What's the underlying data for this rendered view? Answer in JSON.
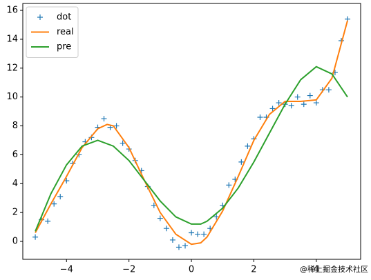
{
  "chart_data": {
    "type": "line",
    "xlim": [
      -5.4,
      5.42
    ],
    "ylim": [
      -1.24,
      16.48
    ],
    "xticks": [
      {
        "value": -4,
        "label": "−4"
      },
      {
        "value": -2,
        "label": "−2"
      },
      0,
      2,
      4
    ],
    "yticks": [
      0,
      2,
      4,
      6,
      8,
      10,
      12,
      14,
      16
    ],
    "grid": false,
    "legend": "upper left",
    "watermark": "@稀土掘金技术社区",
    "series": [
      {
        "name": "dot",
        "color": "#1f77b4",
        "mode": "markers",
        "x": [
          -5,
          -4.8,
          -4.6,
          -4.4,
          -4.2,
          -4,
          -3.8,
          -3.6,
          -3.4,
          -3.2,
          -3,
          -2.8,
          -2.6,
          -2.4,
          -2.2,
          -2,
          -1.8,
          -1.6,
          -1.4,
          -1.2,
          -1,
          -0.8,
          -0.6,
          -0.4,
          -0.2,
          0,
          0.2,
          0.4,
          0.6,
          0.8,
          1,
          1.2,
          1.4,
          1.6,
          1.8,
          2,
          2.2,
          2.4,
          2.6,
          2.8,
          3,
          3.2,
          3.4,
          3.6,
          3.8,
          4,
          4.2,
          4.4,
          4.6,
          4.8,
          5
        ],
        "values": [
          0.3,
          1.5,
          1.4,
          2.6,
          3.1,
          4.2,
          5.4,
          6.0,
          6.9,
          7.2,
          7.9,
          8.5,
          7.9,
          8.0,
          6.8,
          6.4,
          5.6,
          4.9,
          3.8,
          2.5,
          1.6,
          0.9,
          0.1,
          -0.4,
          -0.3,
          0.6,
          0.5,
          0.5,
          0.9,
          1.7,
          2.5,
          3.9,
          4.3,
          5.5,
          6.6,
          7.1,
          8.6,
          8.6,
          9.2,
          9.6,
          9.5,
          9.4,
          10.0,
          9.5,
          10.1,
          9.6,
          10.5,
          10.5,
          11.7,
          13.9,
          15.4
        ]
      },
      {
        "name": "real",
        "color": "#ff7f0e",
        "mode": "lines",
        "x": [
          -5,
          -4.5,
          -4,
          -3.5,
          -3,
          -2.7,
          -2.5,
          -2,
          -1.5,
          -1,
          -0.5,
          0,
          0.3,
          0.5,
          1,
          1.5,
          2,
          2.5,
          3,
          3.5,
          4,
          4.5,
          5
        ],
        "values": [
          0.6,
          2.6,
          4.5,
          6.5,
          7.8,
          8.1,
          8.0,
          6.5,
          4.2,
          2.0,
          0.5,
          -0.2,
          -0.1,
          0.3,
          2.1,
          4.5,
          7.0,
          8.8,
          9.7,
          9.7,
          9.8,
          11.3,
          15.3
        ]
      },
      {
        "name": "pre",
        "color": "#2ca02c",
        "mode": "lines",
        "x": [
          -5,
          -4.5,
          -4,
          -3.5,
          -3,
          -2.5,
          -2,
          -1.5,
          -1,
          -0.5,
          0,
          0.3,
          0.5,
          1,
          1.5,
          2,
          2.5,
          3,
          3.5,
          4,
          4.5,
          5
        ],
        "values": [
          0.7,
          3.3,
          5.3,
          6.6,
          7.0,
          6.6,
          5.6,
          4.2,
          2.8,
          1.7,
          1.2,
          1.2,
          1.4,
          2.3,
          3.7,
          5.5,
          7.5,
          9.5,
          11.2,
          12.1,
          11.6,
          10.0
        ]
      }
    ]
  }
}
